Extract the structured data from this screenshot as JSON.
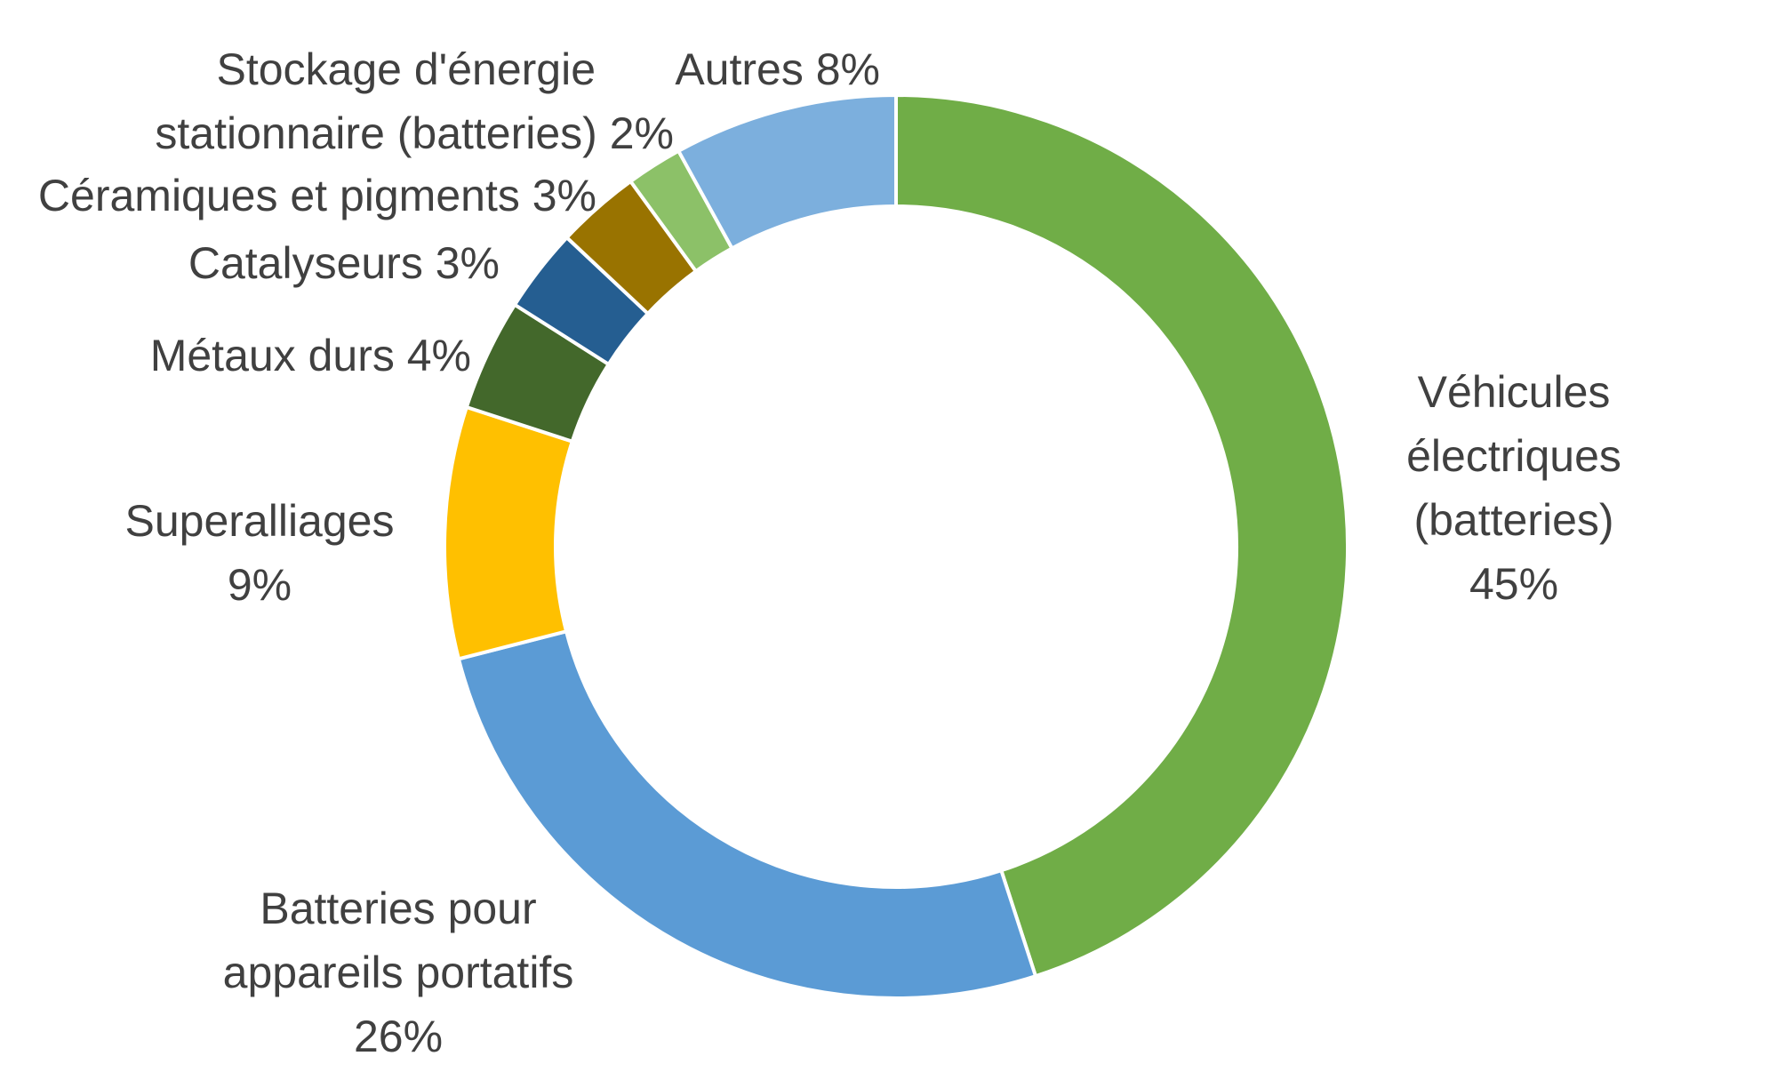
{
  "chart_data": {
    "type": "pie",
    "variant": "donut",
    "start_angle_deg": 0,
    "direction": "clockwise",
    "legend": "none",
    "slices": [
      {
        "label_lines": [
          "Véhicules",
          "électriques",
          "(batteries)"
        ],
        "value_text": "45%",
        "value": 45,
        "color": "#70AD47"
      },
      {
        "label_lines": [
          "Batteries pour",
          "appareils portatifs"
        ],
        "value_text": "26%",
        "value": 26,
        "color": "#5B9BD5"
      },
      {
        "label_lines": [
          "Superalliages"
        ],
        "value_text": "9%",
        "value": 9,
        "color": "#FFC000"
      },
      {
        "label_lines": [
          "Métaux durs"
        ],
        "value_text": "4%",
        "value": 4,
        "color": "#43682B"
      },
      {
        "label_lines": [
          "Catalyseurs"
        ],
        "value_text": "3%",
        "value": 3,
        "color": "#255E91"
      },
      {
        "label_lines": [
          "Céramiques et pigments"
        ],
        "value_text": "3%",
        "value": 3,
        "color": "#997300"
      },
      {
        "label_lines": [
          "Stockage d'énergie",
          "stationnaire (batteries)"
        ],
        "value_text": "2%",
        "value": 2,
        "color": "#8CC168"
      },
      {
        "label_lines": [
          "Autres"
        ],
        "value_text": "8%",
        "value": 8,
        "color": "#7CAFDD"
      }
    ]
  }
}
